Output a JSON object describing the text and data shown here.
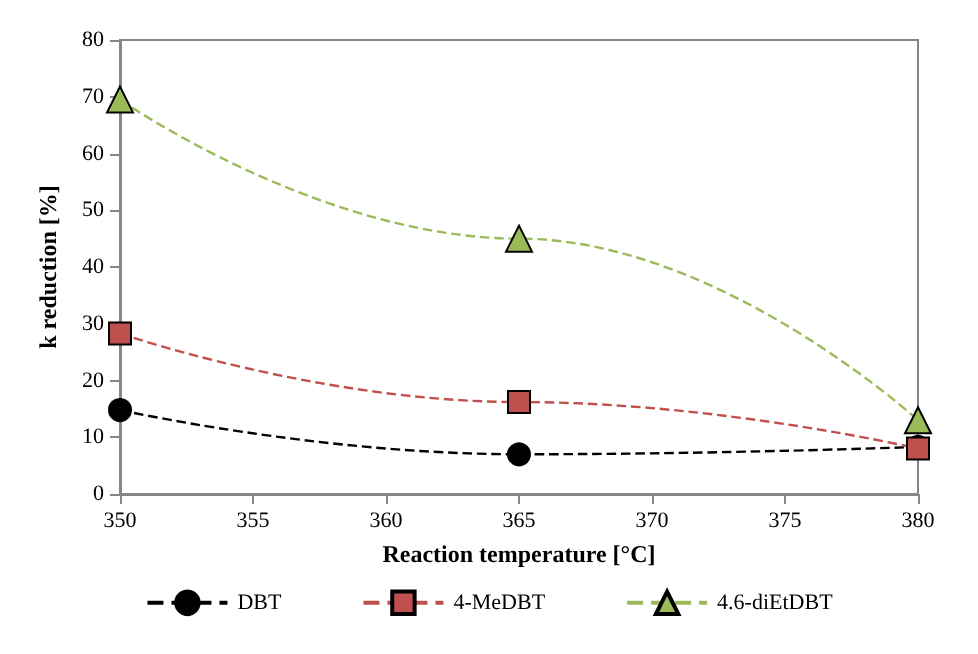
{
  "chart_data": {
    "type": "line",
    "xlabel": "Reaction temperature [°C]",
    "ylabel": "k reduction [%]",
    "x": [
      350,
      365,
      380
    ],
    "series": [
      {
        "name": "DBT",
        "color": "#000000",
        "marker": "circle",
        "values": [
          14.8,
          7,
          8.3
        ]
      },
      {
        "name": "4-MeDBT",
        "color": "#c0504d",
        "marker": "square",
        "values": [
          28.3,
          16.2,
          8
        ]
      },
      {
        "name": "4.6-diEtDBT",
        "color": "#9bbb59",
        "marker": "triangle",
        "values": [
          69.5,
          45,
          13
        ]
      }
    ],
    "xlim": [
      350,
      380
    ],
    "xticks": [
      350,
      355,
      360,
      365,
      370,
      375,
      380
    ],
    "ylim": [
      0,
      80
    ],
    "yticks": [
      0,
      10,
      20,
      30,
      40,
      50,
      60,
      70,
      80
    ],
    "grid": false,
    "legend": "bottom",
    "line_style": "dashed"
  }
}
